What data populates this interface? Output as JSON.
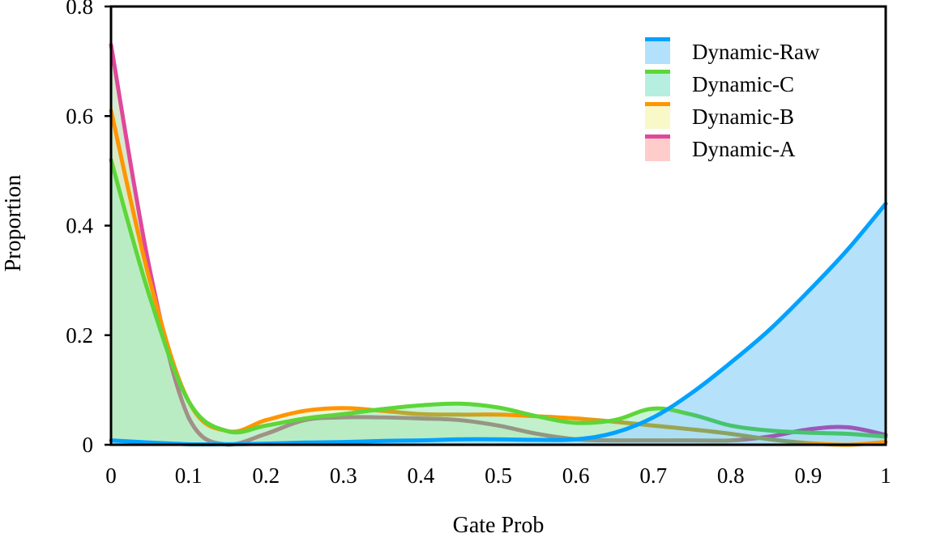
{
  "chart_data": {
    "type": "area",
    "title": "",
    "xlabel": "Gate Prob",
    "ylabel": "Proportion",
    "xlim": [
      0,
      1
    ],
    "ylim": [
      0,
      0.8
    ],
    "grid": false,
    "legend_position": "top-right",
    "x_ticks": [
      "0",
      "0.1",
      "0.2",
      "0.3",
      "0.4",
      "0.5",
      "0.6",
      "0.7",
      "0.8",
      "0.9",
      "1"
    ],
    "y_ticks": [
      "0",
      "0.2",
      "0.4",
      "0.6",
      "0.8"
    ],
    "x": [
      0,
      0.05,
      0.1,
      0.15,
      0.2,
      0.25,
      0.3,
      0.35,
      0.4,
      0.45,
      0.5,
      0.55,
      0.6,
      0.65,
      0.7,
      0.75,
      0.8,
      0.85,
      0.9,
      0.95,
      1.0
    ],
    "series": [
      {
        "name": "Dynamic-A",
        "line_color": "#e0489a",
        "fill_color": "#ffcccc",
        "values": [
          0.73,
          0.32,
          0.05,
          0.0,
          0.02,
          0.045,
          0.05,
          0.05,
          0.048,
          0.045,
          0.035,
          0.02,
          0.01,
          0.008,
          0.008,
          0.008,
          0.008,
          0.015,
          0.028,
          0.032,
          0.018
        ]
      },
      {
        "name": "Dynamic-B",
        "line_color": "#ff9500",
        "fill_color": "#f8f8c8",
        "values": [
          0.61,
          0.3,
          0.08,
          0.025,
          0.045,
          0.062,
          0.067,
          0.062,
          0.056,
          0.055,
          0.055,
          0.052,
          0.048,
          0.042,
          0.035,
          0.028,
          0.02,
          0.01,
          0.003,
          0.0,
          0.005
        ]
      },
      {
        "name": "Dynamic-C",
        "line_color": "#5dd638",
        "fill_color": "#b6efe0",
        "values": [
          0.52,
          0.27,
          0.08,
          0.025,
          0.035,
          0.048,
          0.056,
          0.065,
          0.072,
          0.075,
          0.068,
          0.052,
          0.04,
          0.045,
          0.066,
          0.055,
          0.035,
          0.026,
          0.022,
          0.02,
          0.015
        ]
      },
      {
        "name": "Dynamic-Raw",
        "line_color": "#00a2ff",
        "fill_color": "#b3e1fb",
        "values": [
          0.008,
          0.004,
          0.001,
          0.001,
          0.002,
          0.004,
          0.005,
          0.007,
          0.008,
          0.01,
          0.01,
          0.009,
          0.01,
          0.022,
          0.05,
          0.095,
          0.15,
          0.21,
          0.28,
          0.355,
          0.44
        ]
      }
    ],
    "legend_order": [
      "Dynamic-Raw",
      "Dynamic-C",
      "Dynamic-B",
      "Dynamic-A"
    ]
  }
}
